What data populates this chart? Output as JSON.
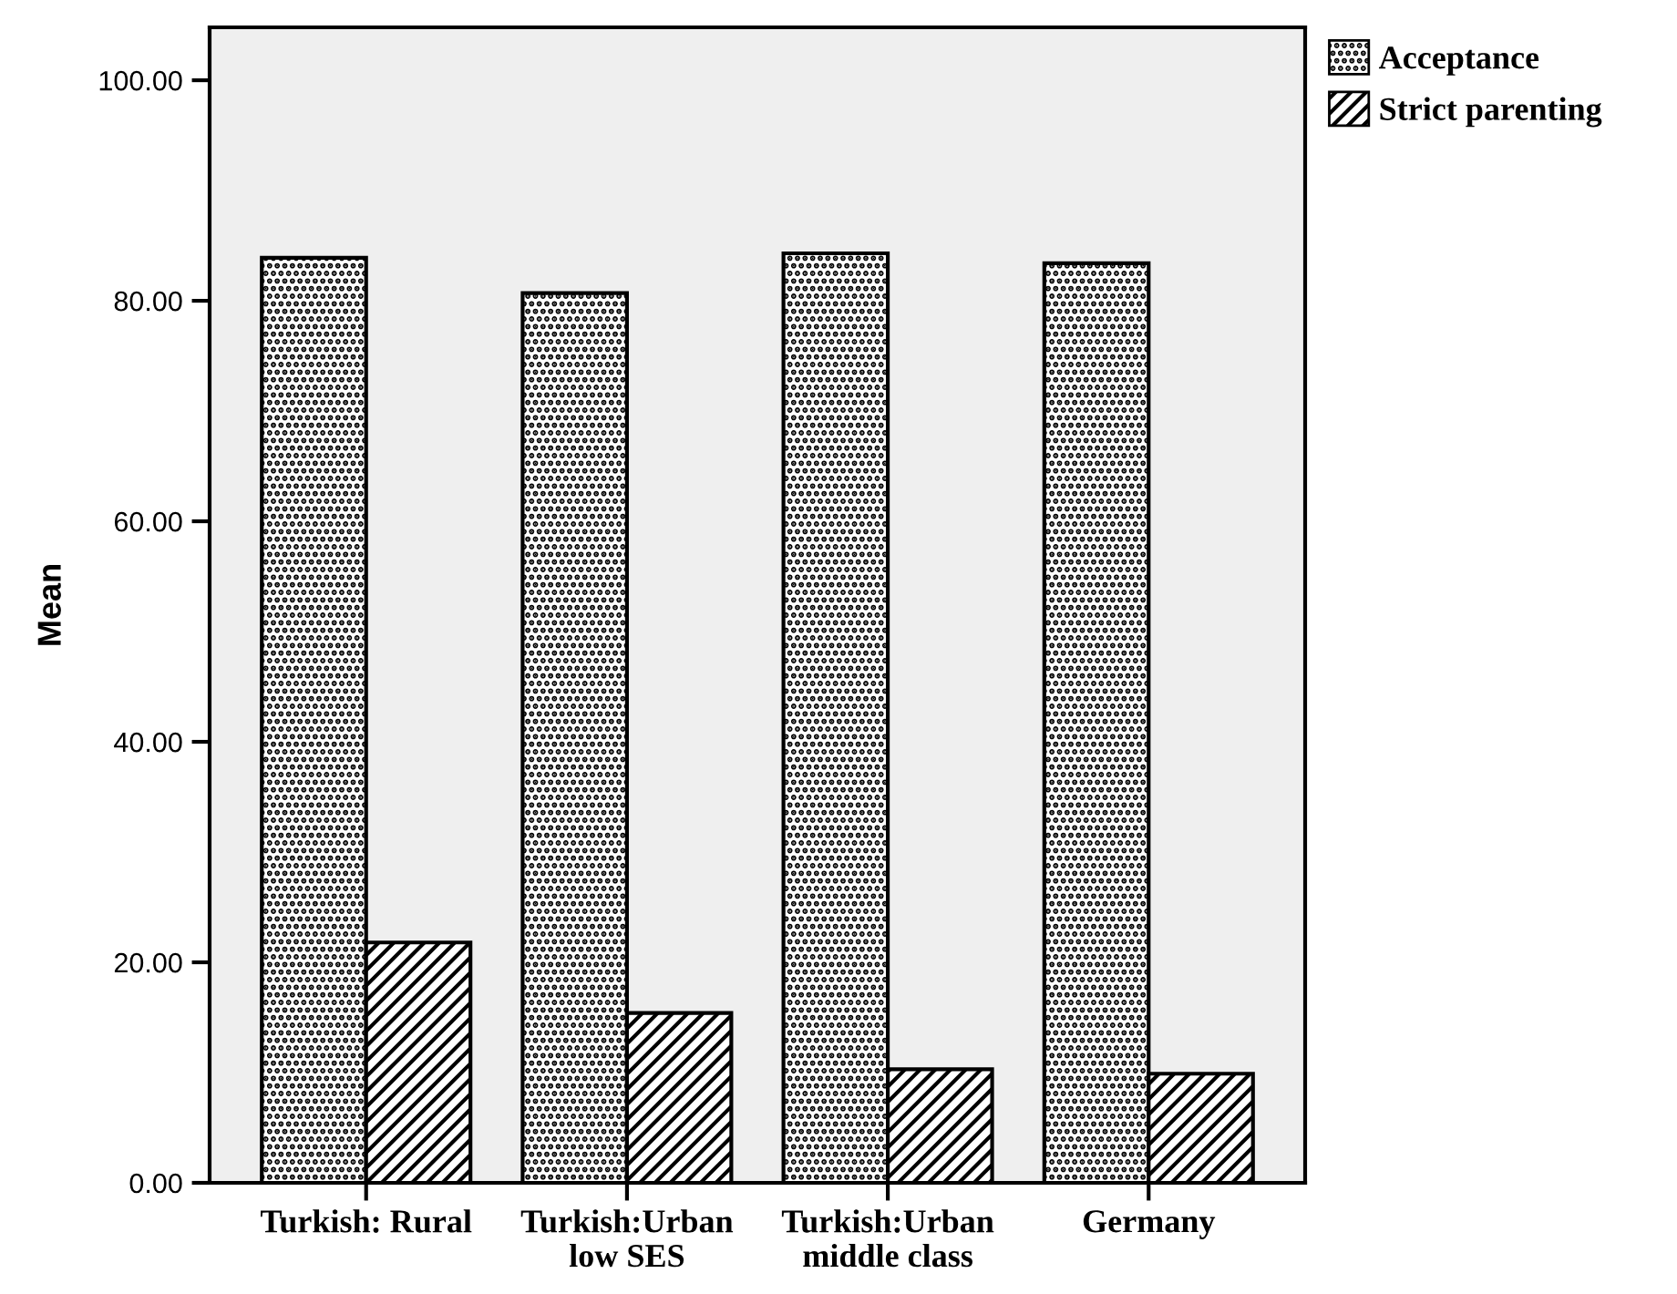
{
  "chart_data": {
    "type": "bar",
    "ylabel": "Mean",
    "categories": [
      "Turkish: Rural",
      "Turkish:Urban\nlow SES",
      "Turkish:Urban\nmiddle class",
      "Germany"
    ],
    "series": [
      {
        "name": "Acceptance",
        "color": "#000000",
        "values": [
          83.9,
          80.7,
          84.3,
          83.4
        ]
      },
      {
        "name": "Strict parenting",
        "color": "#000000",
        "values": [
          21.8,
          15.4,
          10.3,
          9.9
        ]
      }
    ],
    "ylim": [
      0,
      104.8
    ],
    "yticks": [
      {
        "value": 0,
        "label": "0.00"
      },
      {
        "value": 20,
        "label": "20.00"
      },
      {
        "value": 40,
        "label": "40.00"
      },
      {
        "value": 60,
        "label": "60.00"
      },
      {
        "value": 80,
        "label": "80.00"
      },
      {
        "value": 100,
        "label": "100.00"
      }
    ],
    "grid": false,
    "legend": "top right"
  }
}
